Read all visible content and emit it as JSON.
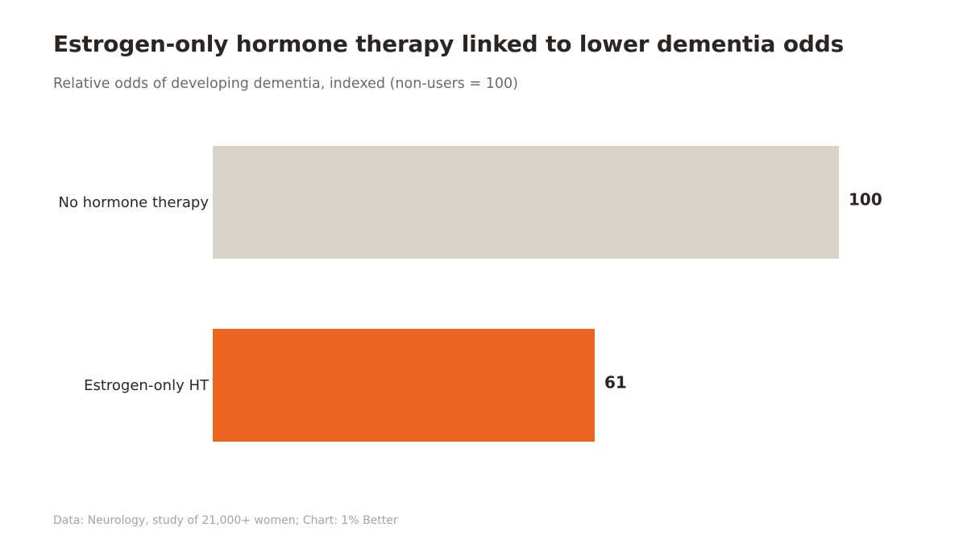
{
  "header": {
    "title": "Estrogen-only hormone therapy linked to lower dementia odds",
    "subtitle": "Relative odds of developing dementia, indexed (non-users = 100)"
  },
  "footer": {
    "source": "Data: Neurology, study of 21,000+ women; Chart: 1% Better"
  },
  "chart_data": {
    "type": "bar",
    "orientation": "horizontal",
    "categories": [
      "No hormone therapy",
      "Estrogen-only HT"
    ],
    "values": [
      100,
      61
    ],
    "value_labels": [
      "100",
      "61"
    ],
    "colors": [
      "#d9d4ca",
      "#ec6520"
    ],
    "xlim": [
      0,
      100
    ],
    "grid": false,
    "legend": "none"
  }
}
